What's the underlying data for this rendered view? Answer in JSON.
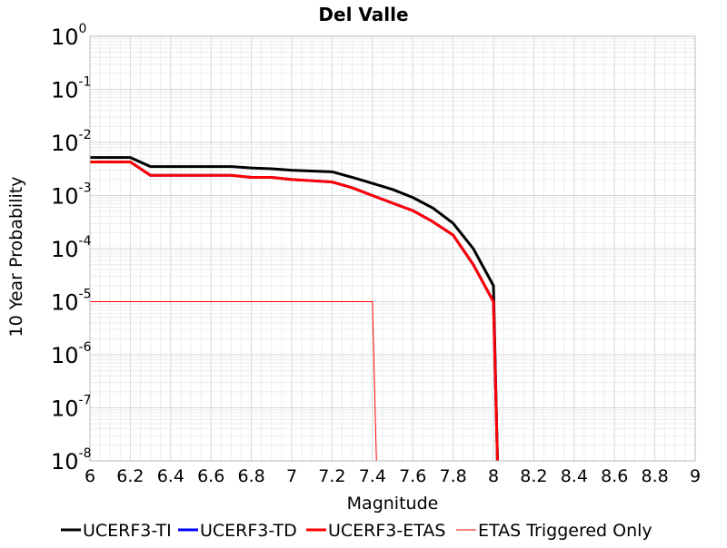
{
  "chart_data": {
    "type": "line",
    "title": "Del Valle",
    "xlabel": "Magnitude",
    "ylabel": "10 Year Probability",
    "xlim": [
      6,
      9
    ],
    "ylim": [
      1e-08,
      1
    ],
    "yscale": "log",
    "grid": true,
    "legend_position": "bottom",
    "x_ticks": [
      "6",
      "6.2",
      "6.4",
      "6.6",
      "6.8",
      "7",
      "7.2",
      "7.4",
      "7.6",
      "7.8",
      "8",
      "8.2",
      "8.4",
      "8.6",
      "8.8",
      "9"
    ],
    "y_ticks": [
      {
        "base": "10",
        "exp": "0",
        "value": 1
      },
      {
        "base": "10",
        "exp": "-1",
        "value": 0.1
      },
      {
        "base": "10",
        "exp": "-2",
        "value": 0.01
      },
      {
        "base": "10",
        "exp": "-3",
        "value": 0.001
      },
      {
        "base": "10",
        "exp": "-4",
        "value": 0.0001
      },
      {
        "base": "10",
        "exp": "-5",
        "value": 1e-05
      },
      {
        "base": "10",
        "exp": "-6",
        "value": 1e-06
      },
      {
        "base": "10",
        "exp": "-7",
        "value": 1e-07
      },
      {
        "base": "10",
        "exp": "-8",
        "value": 1e-08
      }
    ],
    "series": [
      {
        "name": "UCERF3-TI",
        "color": "#000000",
        "width": 3,
        "points": [
          [
            6.0,
            0.0052
          ],
          [
            6.1,
            0.0052
          ],
          [
            6.2,
            0.0052
          ],
          [
            6.3,
            0.0035
          ],
          [
            6.4,
            0.0035
          ],
          [
            6.5,
            0.0035
          ],
          [
            6.6,
            0.0035
          ],
          [
            6.7,
            0.0035
          ],
          [
            6.8,
            0.0033
          ],
          [
            6.9,
            0.0032
          ],
          [
            7.0,
            0.003
          ],
          [
            7.1,
            0.0029
          ],
          [
            7.2,
            0.0028
          ],
          [
            7.3,
            0.0022
          ],
          [
            7.4,
            0.0017
          ],
          [
            7.5,
            0.0013
          ],
          [
            7.6,
            0.00092
          ],
          [
            7.7,
            0.00058
          ],
          [
            7.8,
            0.0003
          ],
          [
            7.9,
            0.0001
          ],
          [
            8.0,
            2e-05
          ],
          [
            8.02,
            1e-08
          ]
        ]
      },
      {
        "name": "UCERF3-TD",
        "color": "#0000ff",
        "width": 3,
        "points": [
          [
            6.0,
            0.0043
          ],
          [
            6.1,
            0.0043
          ],
          [
            6.2,
            0.0043
          ],
          [
            6.3,
            0.0024
          ],
          [
            6.4,
            0.0024
          ],
          [
            6.5,
            0.0024
          ],
          [
            6.6,
            0.0024
          ],
          [
            6.7,
            0.0024
          ],
          [
            6.8,
            0.0022
          ],
          [
            6.9,
            0.0022
          ],
          [
            7.0,
            0.002
          ],
          [
            7.1,
            0.0019
          ],
          [
            7.2,
            0.0018
          ],
          [
            7.3,
            0.0014
          ],
          [
            7.4,
            0.001
          ],
          [
            7.5,
            0.00072
          ],
          [
            7.6,
            0.00052
          ],
          [
            7.7,
            0.00032
          ],
          [
            7.8,
            0.00018
          ],
          [
            7.9,
            5e-05
          ],
          [
            8.0,
            1e-05
          ],
          [
            8.02,
            1e-08
          ]
        ]
      },
      {
        "name": "UCERF3-ETAS",
        "color": "#ff0000",
        "width": 3,
        "points": [
          [
            6.0,
            0.0043
          ],
          [
            6.1,
            0.0043
          ],
          [
            6.2,
            0.0043
          ],
          [
            6.3,
            0.0024
          ],
          [
            6.4,
            0.0024
          ],
          [
            6.5,
            0.0024
          ],
          [
            6.6,
            0.0024
          ],
          [
            6.7,
            0.0024
          ],
          [
            6.8,
            0.0022
          ],
          [
            6.9,
            0.0022
          ],
          [
            7.0,
            0.002
          ],
          [
            7.1,
            0.0019
          ],
          [
            7.2,
            0.0018
          ],
          [
            7.3,
            0.0014
          ],
          [
            7.4,
            0.001
          ],
          [
            7.5,
            0.00072
          ],
          [
            7.6,
            0.00052
          ],
          [
            7.7,
            0.00032
          ],
          [
            7.8,
            0.00018
          ],
          [
            7.9,
            5e-05
          ],
          [
            8.0,
            1e-05
          ],
          [
            8.02,
            1e-08
          ]
        ]
      },
      {
        "name": "ETAS Triggered Only",
        "color": "#ff0000",
        "width": 1,
        "points": [
          [
            6.0,
            1e-05
          ],
          [
            7.4,
            1e-05
          ],
          [
            7.42,
            1e-08
          ]
        ]
      }
    ]
  }
}
